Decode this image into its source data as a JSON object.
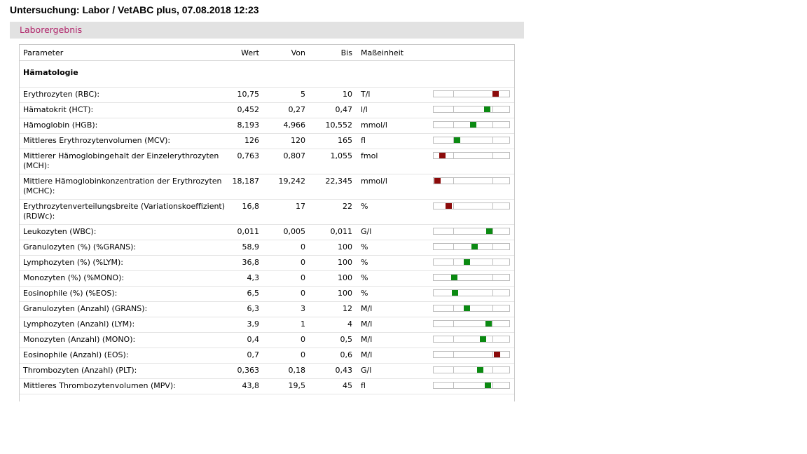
{
  "header": {
    "title": "Untersuchung: Labor / VetABC plus, 07.08.2018 12:23"
  },
  "section": {
    "label": "Laborergebnis"
  },
  "columns": {
    "param": "Parameter",
    "wert": "Wert",
    "von": "Von",
    "bis": "Bis",
    "unit": "Maßeinheit"
  },
  "group": {
    "label": "Hämatologie"
  },
  "colors": {
    "in_range": "#0b8a12",
    "out_of_range": "#8b0a0a"
  },
  "rows": [
    {
      "param": "Erythrozyten (RBC):",
      "wert": "10,75",
      "von": "5",
      "bis": "10",
      "unit": "T/l",
      "level": 0.82,
      "status": "out"
    },
    {
      "param": "Hämatokrit (HCT):",
      "wert": "0,452",
      "von": "0,27",
      "bis": "0,47",
      "unit": "l/l",
      "level": 0.71,
      "status": "in"
    },
    {
      "param": "Hämoglobin (HGB):",
      "wert": "8,193",
      "von": "4,966",
      "bis": "10,552",
      "unit": "mmol/l",
      "level": 0.52,
      "status": "in"
    },
    {
      "param": "Mittleres Erythrozytenvolumen (MCV):",
      "wert": "126",
      "von": "120",
      "bis": "165",
      "unit": "fl",
      "level": 0.31,
      "status": "in"
    },
    {
      "param": "Mittlerer Hämoglobingehalt der Einzelerythrozyten (MCH):",
      "wert": "0,763",
      "von": "0,807",
      "bis": "1,055",
      "unit": "fmol",
      "level": 0.12,
      "status": "out"
    },
    {
      "param": "Mittlere Hämoglobinkonzentration der Erythrozyten (MCHC):",
      "wert": "18,187",
      "von": "19,242",
      "bis": "22,345",
      "unit": "mmol/l",
      "level": 0.05,
      "status": "out"
    },
    {
      "param": "Erythrozytenverteilungsbreite (Variationskoeffizient) (RDWc):",
      "wert": "16,8",
      "von": "17",
      "bis": "22",
      "unit": "%",
      "level": 0.2,
      "status": "out"
    },
    {
      "param": "Leukozyten (WBC):",
      "wert": "0,011",
      "von": "0,005",
      "bis": "0,011",
      "unit": "G/l",
      "level": 0.74,
      "status": "in"
    },
    {
      "param": "Granulozyten (%) (%GRANS):",
      "wert": "58,9",
      "von": "0",
      "bis": "100",
      "unit": "%",
      "level": 0.54,
      "status": "in"
    },
    {
      "param": "Lymphozyten (%) (%LYM):",
      "wert": "36,8",
      "von": "0",
      "bis": "100",
      "unit": "%",
      "level": 0.44,
      "status": "in"
    },
    {
      "param": "Monozyten (%) (%MONO):",
      "wert": "4,3",
      "von": "0",
      "bis": "100",
      "unit": "%",
      "level": 0.27,
      "status": "in"
    },
    {
      "param": "Eosinophile (%) (%EOS):",
      "wert": "6,5",
      "von": "0",
      "bis": "100",
      "unit": "%",
      "level": 0.28,
      "status": "in"
    },
    {
      "param": "Granulozyten (Anzahl) (GRANS):",
      "wert": "6,3",
      "von": "3",
      "bis": "12",
      "unit": "M/l",
      "level": 0.44,
      "status": "in"
    },
    {
      "param": "Lymphozyten (Anzahl) (LYM):",
      "wert": "3,9",
      "von": "1",
      "bis": "4",
      "unit": "M/l",
      "level": 0.73,
      "status": "in"
    },
    {
      "param": "Monozyten (Anzahl) (MONO):",
      "wert": "0,4",
      "von": "0",
      "bis": "0,5",
      "unit": "M/l",
      "level": 0.65,
      "status": "in"
    },
    {
      "param": "Eosinophile (Anzahl) (EOS):",
      "wert": "0,7",
      "von": "0",
      "bis": "0,6",
      "unit": "M/l",
      "level": 0.84,
      "status": "out"
    },
    {
      "param": "Thrombozyten (Anzahl) (PLT):",
      "wert": "0,363",
      "von": "0,18",
      "bis": "0,43",
      "unit": "G/l",
      "level": 0.62,
      "status": "in"
    },
    {
      "param": "Mittleres Thrombozytenvolumen (MPV):",
      "wert": "43,8",
      "von": "19,5",
      "bis": "45",
      "unit": "fl",
      "level": 0.72,
      "status": "in"
    }
  ]
}
